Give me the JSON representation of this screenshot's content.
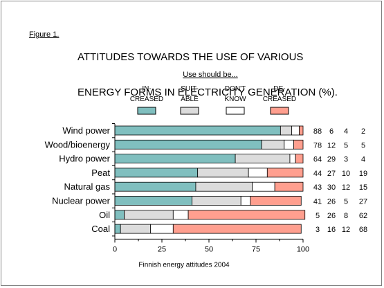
{
  "figure": {
    "label": "Figure 1.",
    "title_lines": [
      "ATTITUDES TOWARDS THE USE OF VARIOUS",
      "ENERGY FORMS IN ELECTRICITY GENERATION (%)."
    ]
  },
  "chart_data": {
    "type": "bar",
    "orientation": "horizontal",
    "stacked": true,
    "title": "ATTITUDES TOWARDS THE USE OF VARIOUS ENERGY FORMS IN ELECTRICITY GENERATION (%).",
    "legend_title": "Use should be...",
    "legend_placement": "top",
    "xlabel": "Finnish energy attitudes 2004",
    "xlim": [
      0,
      100
    ],
    "xticks": [
      "0",
      "25",
      "50",
      "75",
      "100"
    ],
    "categories": [
      "Wind power",
      "Wood/bioenergy",
      "Hydro power",
      "Peat",
      "Natural gas",
      "Nuclear power",
      "Oil",
      "Coal"
    ],
    "series": [
      {
        "name": "IN-CREASED",
        "label_lines": [
          "IN-",
          "CREASED"
        ],
        "color": "#80bfbf",
        "values": [
          88,
          78,
          64,
          44,
          43,
          41,
          5,
          3
        ]
      },
      {
        "name": "SUIT-ABLE",
        "label_lines": [
          "SUIT-",
          "ABLE"
        ],
        "color": "#dcdcdc",
        "values": [
          6,
          12,
          29,
          27,
          30,
          26,
          26,
          16
        ]
      },
      {
        "name": "DON'T KNOW",
        "label_lines": [
          "DON'T",
          "KNOW"
        ],
        "color": "#ffffff",
        "values": [
          4,
          5,
          3,
          10,
          12,
          5,
          8,
          12
        ]
      },
      {
        "name": "DE-CREASED",
        "label_lines": [
          "DE-",
          "CREASED"
        ],
        "color": "#ff9f8f",
        "values": [
          2,
          5,
          4,
          19,
          15,
          27,
          62,
          68
        ]
      }
    ],
    "grid": false
  }
}
